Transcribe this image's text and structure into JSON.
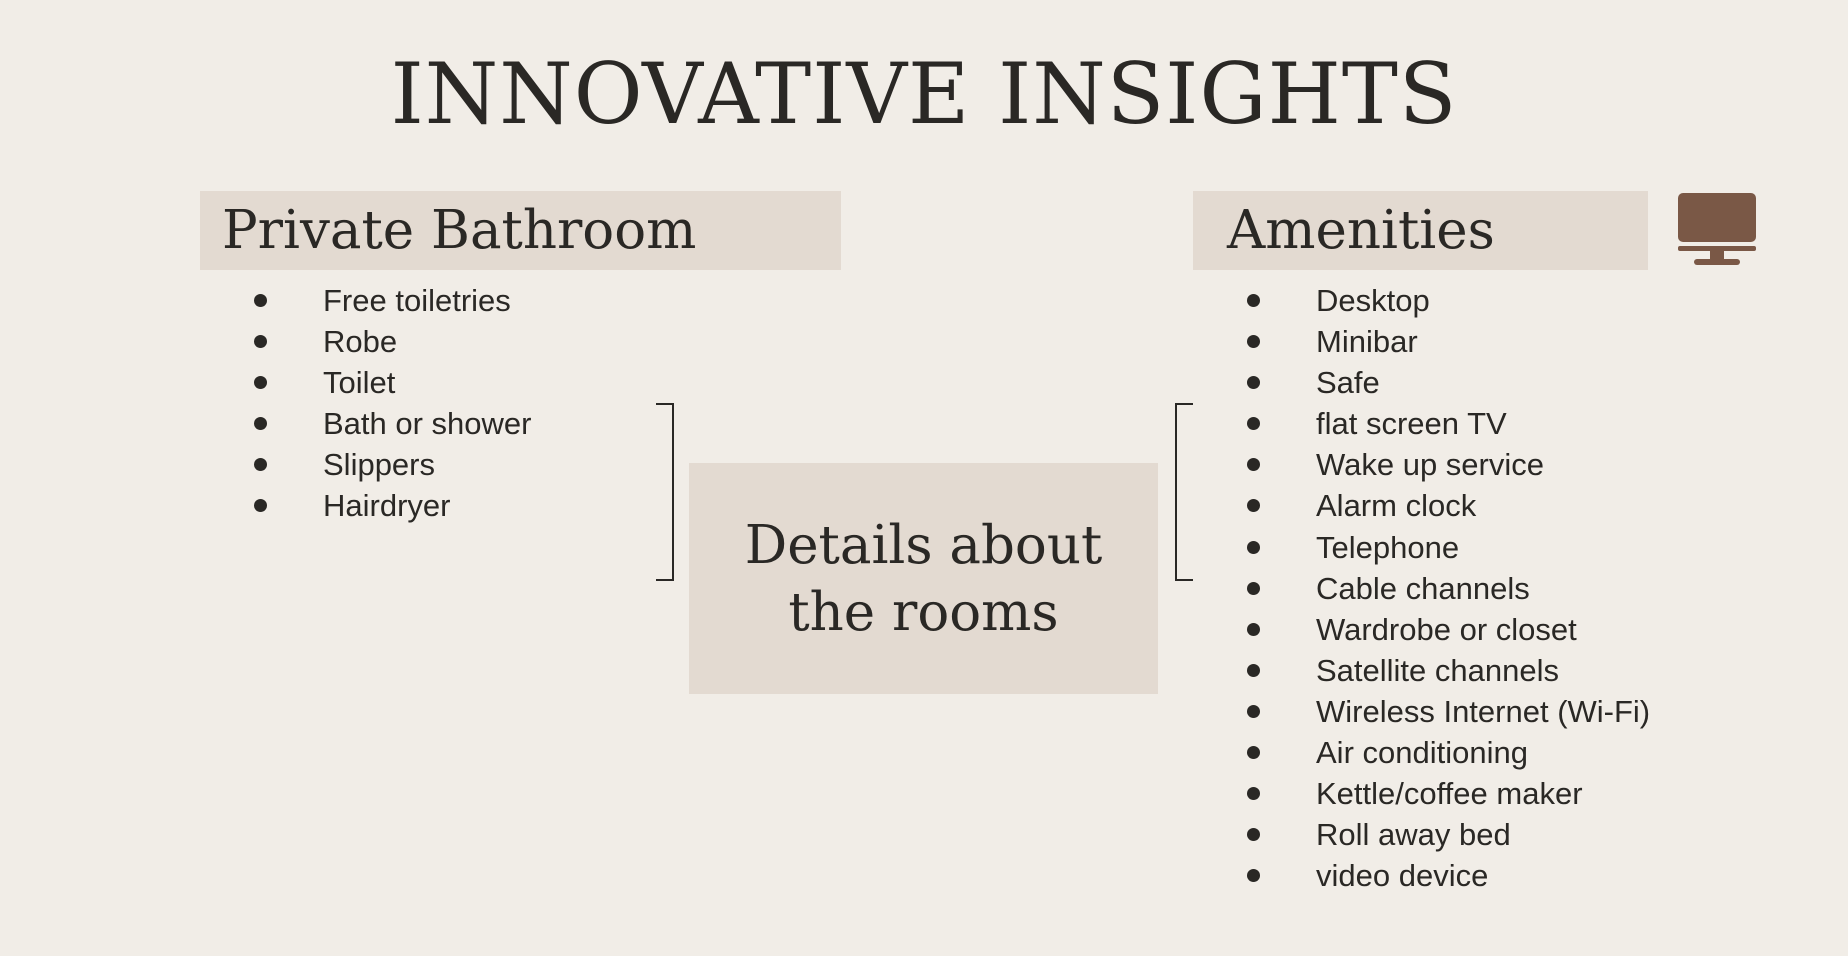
{
  "title": "INNOVATIVE INSIGHTS",
  "left_section": {
    "heading": "Private Bathroom",
    "items": [
      "Free toiletries",
      "Robe",
      "Toilet",
      "Bath or shower",
      "Slippers",
      "Hairdryer"
    ]
  },
  "center": {
    "text": "Details about the rooms"
  },
  "right_section": {
    "heading": "Amenities",
    "icon": "monitor-icon",
    "items": [
      "Desktop",
      "Minibar",
      "Safe",
      "flat screen TV",
      "Wake up service",
      "Alarm clock",
      "Telephone",
      "Cable channels",
      "Wardrobe or closet",
      "Satellite channels",
      "Wireless Internet (Wi-Fi)",
      "Air conditioning",
      "Kettle/coffee maker",
      "Roll away bed",
      "video device"
    ]
  },
  "colors": {
    "background": "#f1ede7",
    "panel": "#e3dad1",
    "text": "#2a2825",
    "icon": "#7a5846"
  }
}
